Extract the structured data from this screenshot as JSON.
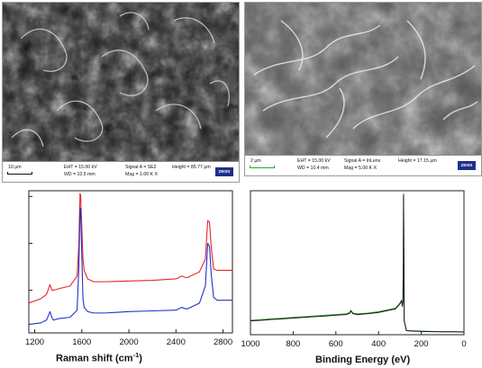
{
  "sem_left": {
    "scale_label": "10 µm",
    "eht": "EHT = 15.00 kV",
    "wd": "WD = 10.5 mm",
    "signal": "Signal A = SE2",
    "mag": "Mag =  1.00 K X",
    "height": "Height = 85.77 µm",
    "logo": "ZEISS"
  },
  "sem_right": {
    "scale_label": "2 µm",
    "eht": "EHT = 15.00 kV",
    "wd": "WD = 10.4 mm",
    "signal": "Signal A = InLens",
    "mag": "Mag =  5.00 K X",
    "height": "Height = 17.15 µm",
    "logo": "ZEISS"
  },
  "raman": {
    "xlabel_text": "Raman shift (cm",
    "xlabel_sup": "-1",
    "xlabel_close": ")"
  },
  "xps": {
    "xlabel": "Binding Energy (eV)"
  },
  "chart_data": [
    {
      "type": "line",
      "xlabel": "Raman shift (cm-1)",
      "ylabel": "",
      "xlim": [
        1150,
        2880
      ],
      "ylim": [
        0,
        100
      ],
      "xticks": [
        1200,
        1600,
        2000,
        2400,
        2800
      ],
      "colors": {
        "series_1": "#e8262a",
        "series_2": "#2330c8"
      },
      "series": [
        {
          "x": [
            1150,
            1250,
            1300,
            1330,
            1345,
            1360,
            1400,
            1500,
            1560,
            1575,
            1585,
            1590,
            1600,
            1610,
            1620,
            1650,
            1700,
            1800,
            2000,
            2200,
            2400,
            2450,
            2480,
            2500,
            2600,
            2650,
            2670,
            2685,
            2700,
            2720,
            2750,
            2800,
            2880
          ],
          "y": [
            21,
            24,
            27,
            34,
            30,
            30,
            31,
            33,
            40,
            62,
            98,
            97,
            75,
            52,
            44,
            38,
            36,
            36,
            36.5,
            37,
            38,
            40,
            39,
            39,
            43,
            52,
            79,
            78,
            60,
            45,
            44,
            44,
            44
          ]
        },
        {
          "x": [
            1150,
            1250,
            1300,
            1330,
            1345,
            1360,
            1400,
            1500,
            1560,
            1575,
            1585,
            1590,
            1600,
            1610,
            1620,
            1650,
            1700,
            1800,
            2000,
            2200,
            2400,
            2450,
            2480,
            2500,
            2600,
            2650,
            2670,
            2685,
            2700,
            2720,
            2750,
            2800,
            2880
          ],
          "y": [
            6,
            7,
            9,
            15,
            11,
            9,
            10,
            11,
            16,
            46,
            88,
            87,
            55,
            24,
            18,
            15,
            14,
            14,
            15,
            15.5,
            16,
            18,
            17,
            17,
            21,
            33,
            63,
            61,
            41,
            25,
            23,
            23,
            23
          ]
        }
      ]
    },
    {
      "type": "line",
      "xlabel": "Binding Energy (eV)",
      "ylabel": "",
      "xlim": [
        1000,
        0
      ],
      "ylim": [
        0,
        100
      ],
      "xticks": [
        1000,
        800,
        600,
        400,
        200,
        0
      ],
      "colors": {
        "series_1": "#2da52d",
        "series_2": "#1a1a1a"
      },
      "series": [
        {
          "x": [
            1000,
            950,
            900,
            850,
            800,
            750,
            700,
            650,
            600,
            550,
            535,
            530,
            520,
            500,
            450,
            400,
            350,
            320,
            300,
            292,
            289,
            286,
            284,
            283,
            282,
            280,
            270,
            250,
            200,
            150,
            100,
            50,
            0
          ],
          "y": [
            10,
            10.5,
            11,
            11.5,
            12,
            12.5,
            13,
            13.5,
            14,
            14.5,
            15.5,
            17,
            15,
            14.5,
            15,
            16,
            17.5,
            18.5,
            22,
            24,
            20,
            23,
            50,
            98,
            70,
            10,
            3,
            2.8,
            2.5,
            2.3,
            2.1,
            2.1,
            2.0
          ]
        },
        {
          "x": [
            1000,
            950,
            900,
            850,
            800,
            750,
            700,
            650,
            600,
            550,
            535,
            530,
            520,
            500,
            450,
            400,
            350,
            320,
            300,
            292,
            289,
            286,
            284,
            283,
            282,
            280,
            270,
            250,
            200,
            150,
            100,
            50,
            0
          ],
          "y": [
            9.6,
            10,
            10.6,
            11,
            11.6,
            12,
            12.6,
            13,
            13.6,
            14,
            15,
            16.5,
            14.6,
            14,
            14.6,
            15.5,
            17,
            18,
            21.5,
            23.5,
            19.6,
            22.5,
            49,
            97,
            69,
            9.6,
            2.8,
            2.6,
            2.3,
            2.1,
            2.0,
            2.0,
            1.9
          ]
        }
      ]
    }
  ]
}
